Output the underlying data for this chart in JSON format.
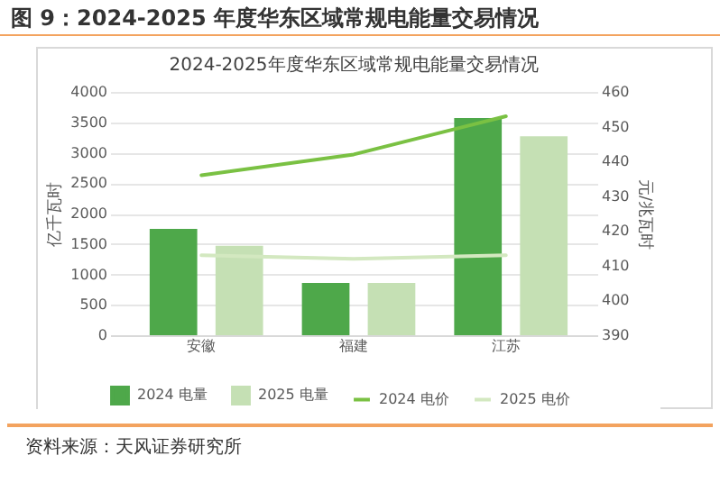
{
  "chart_data": {
    "type": "bar",
    "title": "图 9：2024-2025 年度华东区域常规电能量交易情况",
    "subtitle": "2024-2025年度华东区域常规电能量交易情况",
    "ylabel": "亿千瓦时",
    "y2label": "元/兆瓦时",
    "categories": [
      "安徽",
      "福建",
      "江苏"
    ],
    "series": [
      {
        "name": "2024 电量",
        "color": "#4ea84a",
        "values": [
          1750,
          860,
          3570
        ]
      },
      {
        "name": "2025 电量",
        "color": "#c5e0b4",
        "values": [
          1470,
          860,
          3270
        ]
      },
      {
        "name": "2024 电价",
        "type": "line",
        "axis": "y2",
        "color": "#7ac143",
        "values": [
          436,
          442,
          453
        ]
      },
      {
        "name": "2025 电价",
        "type": "line",
        "axis": "y2",
        "color": "#d3e8c0",
        "values": [
          413,
          412,
          413
        ]
      }
    ],
    "ylim": [
      0,
      4000
    ],
    "yticks": [
      0,
      500,
      1000,
      1500,
      2000,
      2500,
      3000,
      3500,
      4000
    ],
    "y2lim": [
      390,
      460
    ],
    "y2ticks": [
      390,
      400,
      410,
      420,
      430,
      440,
      450,
      460
    ],
    "grid": "y",
    "legend": "bottom",
    "annotations": [
      "资料来源：天风证券研究所"
    ]
  }
}
